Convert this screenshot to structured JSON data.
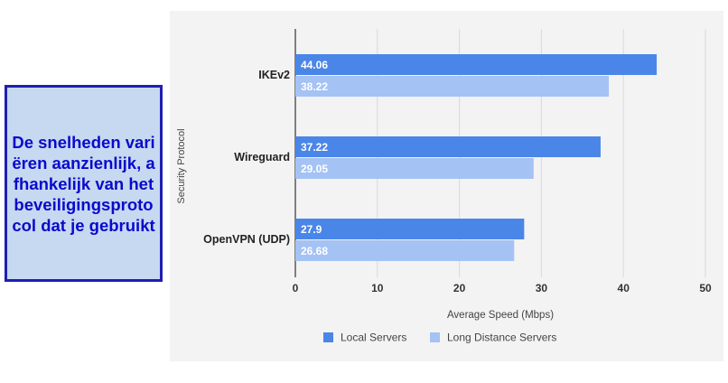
{
  "callout": {
    "text": "De snelheden variëren aanzienlijk, afhankelijk van het beveiligingsprotocol dat je gebruikt"
  },
  "chart_data": {
    "type": "bar",
    "orientation": "horizontal",
    "categories": [
      "IKEv2",
      "Wireguard",
      "OpenVPN (UDP)"
    ],
    "series": [
      {
        "name": "Local Servers",
        "values": [
          44.06,
          37.22,
          27.9
        ],
        "color": "#4a86e8"
      },
      {
        "name": "Long Distance Servers",
        "values": [
          38.22,
          29.05,
          26.68
        ],
        "color": "#a4c2f4"
      }
    ],
    "xlabel": "Average Speed (Mbps)",
    "ylabel": "Security Protocol",
    "xlim": [
      0,
      50
    ],
    "ticks": [
      "0",
      "10",
      "20",
      "30",
      "40",
      "50"
    ],
    "data_labels": [
      [
        "44.06",
        "37.22",
        "27.9"
      ],
      [
        "38.22",
        "29.05",
        "26.68"
      ]
    ],
    "grid": "vertical",
    "legend_position": "bottom",
    "background": "#f3f3f3"
  }
}
